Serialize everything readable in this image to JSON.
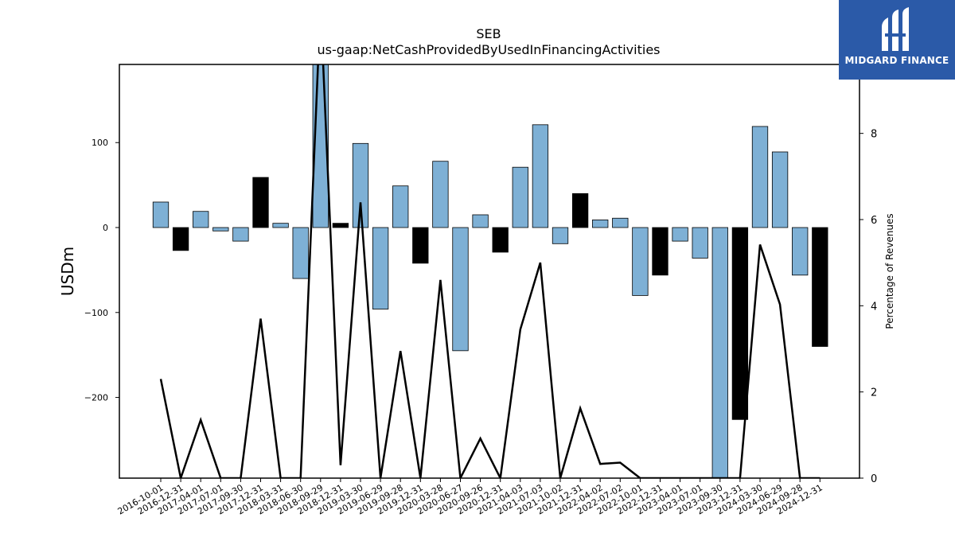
{
  "title": "SEB",
  "subtitle": "us-gaap:NetCashProvidedByUsedInFinancingActivities",
  "logo": {
    "text": "MIDGARD FINANCE",
    "background": "#2b5aa8"
  },
  "chart_data": {
    "type": "bar",
    "ylabel": "USDm",
    "y2label": "Percentage of Revenues",
    "ylim": [
      -295,
      192
    ],
    "y2lim": [
      0,
      9.6
    ],
    "yticks": [
      100,
      0,
      -100,
      -200
    ],
    "y2ticks": [
      0,
      2,
      4,
      6,
      8
    ],
    "grid": false,
    "colors": {
      "positive_bar": "#7eb0d5",
      "negative_bar": "#000000",
      "line": "#000000"
    },
    "categories": [
      "2016-10-01",
      "2016-12-31",
      "2017-04-01",
      "2017-07-01",
      "2017-09-30",
      "2017-12-31",
      "2018-03-31",
      "2018-06-30",
      "2018-09-29",
      "2018-12-31",
      "2019-03-30",
      "2019-06-29",
      "2019-09-28",
      "2019-12-31",
      "2020-03-28",
      "2020-06-27",
      "2020-09-26",
      "2020-12-31",
      "2021-04-03",
      "2021-07-03",
      "2021-10-02",
      "2021-12-31",
      "2022-04-02",
      "2022-07-02",
      "2022-10-01",
      "2022-12-31",
      "2023-04-01",
      "2023-07-01",
      "2023-09-30",
      "2023-12-31",
      "2024-03-30",
      "2024-06-29",
      "2024-09-28",
      "2024-12-31"
    ],
    "series": [
      {
        "kind": "bar",
        "values": [
          30,
          -27,
          19,
          -4,
          -16,
          59,
          5,
          -60,
          230,
          5,
          99,
          -96,
          49,
          -42,
          78,
          -145,
          15,
          -29,
          71,
          121,
          -19,
          40,
          9,
          11,
          -80,
          -56,
          -16,
          -36,
          -330,
          -226,
          119,
          89,
          -56,
          -140
        ],
        "styles": [
          "blue",
          "black",
          "blue",
          "blue",
          "blue",
          "black",
          "blue",
          "blue",
          "blue",
          "black",
          "blue",
          "blue",
          "blue",
          "black",
          "blue",
          "blue",
          "blue",
          "black",
          "blue",
          "blue",
          "blue",
          "black",
          "blue",
          "blue",
          "blue",
          "black",
          "blue",
          "blue",
          "blue",
          "black",
          "blue",
          "blue",
          "blue",
          "black"
        ]
      },
      {
        "kind": "line",
        "axis": "right",
        "values": [
          2.3,
          0,
          1.35,
          0,
          0,
          3.7,
          0,
          0,
          11,
          0.3,
          6.4,
          0,
          2.95,
          0,
          4.6,
          0,
          0.92,
          0,
          3.45,
          5,
          0,
          1.62,
          0.33,
          0.36,
          0,
          0,
          0,
          0,
          0,
          0,
          5.42,
          4.03,
          0,
          0
        ]
      }
    ]
  }
}
